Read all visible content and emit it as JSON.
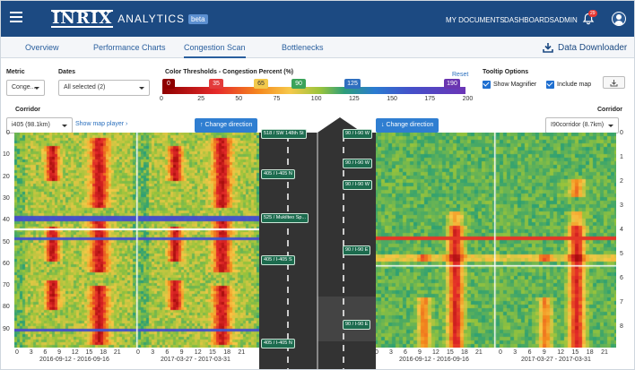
{
  "header": {
    "logo_text": "INRIX",
    "logo_subtitle": "ANALYTICS",
    "beta_badge": "beta",
    "nav": [
      "MY DOCUMENTS",
      "DASHBOARDS",
      "ADMIN"
    ],
    "notification_count": "29"
  },
  "tabs": [
    "Overview",
    "Performance Charts",
    "Congestion Scan",
    "Bottlenecks"
  ],
  "active_tab": "Congestion Scan",
  "downloader_label": "Data Downloader",
  "controls": {
    "metric_label": "Metric",
    "metric_value": "Conge...",
    "dates_label": "Dates",
    "dates_value": "All selected (2)",
    "thresholds_label": "Color Thresholds - Congestion Percent (%)",
    "reset_label": "Reset",
    "handles": [
      {
        "value": "0",
        "color": "#8e0000"
      },
      {
        "value": "35",
        "color": "#e23b3b"
      },
      {
        "value": "65",
        "color": "#f2c94c"
      },
      {
        "value": "90",
        "color": "#3aa35a"
      },
      {
        "value": "125",
        "color": "#2f6fbf"
      },
      {
        "value": "190",
        "color": "#6a35b0"
      }
    ],
    "scale_ticks": [
      "0",
      "25",
      "50",
      "75",
      "100",
      "125",
      "150",
      "175",
      "200"
    ],
    "tooltip_label": "Tooltip Options",
    "show_magnifier": "Show Magnifier",
    "include_map": "Include map"
  },
  "left_panel": {
    "corridor_label": "Corridor",
    "corridor_value": "i405 (98.1km)",
    "show_map_player": "Show map player",
    "change_direction": "Change direction",
    "y_ticks": [
      "0",
      "10",
      "20",
      "30",
      "40",
      "50",
      "60",
      "70",
      "80",
      "90"
    ],
    "x_ticks_a": [
      "0",
      "3",
      "6",
      "9",
      "12",
      "15",
      "18",
      "21"
    ],
    "x_ticks_b": [
      "0",
      "3",
      "6",
      "9",
      "12",
      "15",
      "18",
      "21"
    ],
    "date_a": "2016-09-12 - 2016-09-16",
    "date_b": "2017-03-27 - 2017-03-31"
  },
  "right_panel": {
    "corridor_label": "Corridor",
    "corridor_value": "I90corridor (8.7km)",
    "change_direction": "Change direction",
    "y_ticks": [
      "0",
      "1",
      "2",
      "3",
      "4",
      "5",
      "6",
      "7",
      "8"
    ],
    "x_ticks_a": [
      "0",
      "3",
      "6",
      "9",
      "12",
      "15",
      "18",
      "21"
    ],
    "x_ticks_b": [
      "0",
      "3",
      "6",
      "9",
      "12",
      "15",
      "18",
      "21"
    ],
    "date_a": "2016-09-12 - 2016-09-16",
    "date_b": "2017-03-27 - 2017-03-31"
  },
  "road_tags_left": [
    "518 / SW 148th St",
    "405 / I-405 N",
    "525 / Mukilteo Sp...",
    "405 / I-405 S",
    "405 / I-405 N"
  ],
  "road_tags_right": [
    "90 / I-90 W",
    "90 / I-90 W",
    "90 / I-90 W",
    "90 / I-90 E",
    "90 / I-90 E"
  ]
}
